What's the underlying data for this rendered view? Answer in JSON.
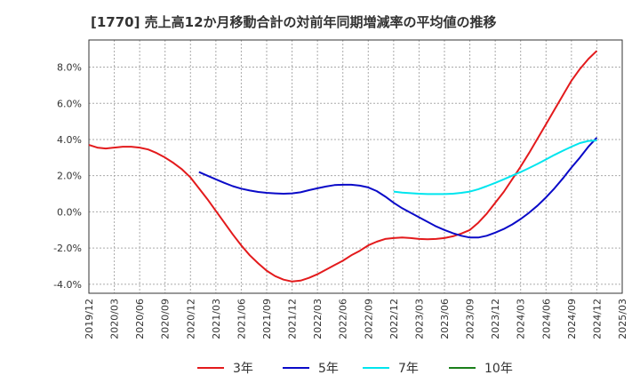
{
  "chart_data": {
    "type": "line",
    "title": "[1770]  売上高12か月移動合計の対前年同期増減率の平均値の推移",
    "xlabel": "",
    "ylabel": "",
    "ylim": [
      -4.5,
      9.5
    ],
    "yticks": [
      -4.0,
      -2.0,
      0.0,
      2.0,
      4.0,
      6.0,
      8.0
    ],
    "ytick_labels": [
      "-4.0%",
      "-2.0%",
      "0.0%",
      "2.0%",
      "4.0%",
      "6.0%",
      "8.0%"
    ],
    "xlim": [
      "2019-12",
      "2025-03"
    ],
    "xtick_labels": [
      "2019/12",
      "2020/03",
      "2020/06",
      "2020/09",
      "2020/12",
      "2021/03",
      "2021/06",
      "2021/09",
      "2021/12",
      "2022/03",
      "2022/06",
      "2022/09",
      "2022/12",
      "2023/03",
      "2023/06",
      "2023/09",
      "2023/12",
      "2024/03",
      "2024/06",
      "2024/09",
      "2024/12",
      "2025/03"
    ],
    "grid": true,
    "legend_position": "bottom",
    "series": [
      {
        "name": "3年",
        "color": "#e31a1c",
        "x": [
          "2019-12",
          "2020-01",
          "2020-02",
          "2020-03",
          "2020-04",
          "2020-05",
          "2020-06",
          "2020-07",
          "2020-08",
          "2020-09",
          "2020-10",
          "2020-11",
          "2020-12",
          "2021-01",
          "2021-02",
          "2021-03",
          "2021-04",
          "2021-05",
          "2021-06",
          "2021-07",
          "2021-08",
          "2021-09",
          "2021-10",
          "2021-11",
          "2021-12",
          "2022-01",
          "2022-02",
          "2022-03",
          "2022-04",
          "2022-05",
          "2022-06",
          "2022-07",
          "2022-08",
          "2022-09",
          "2022-10",
          "2022-11",
          "2022-12",
          "2023-01",
          "2023-02",
          "2023-03",
          "2023-04",
          "2023-05",
          "2023-06",
          "2023-07",
          "2023-08",
          "2023-09",
          "2023-10",
          "2023-11",
          "2023-12",
          "2024-01",
          "2024-02",
          "2024-03",
          "2024-04",
          "2024-05",
          "2024-06",
          "2024-07",
          "2024-08",
          "2024-09",
          "2024-10",
          "2024-11",
          "2024-12"
        ],
        "values": [
          3.7,
          3.55,
          3.5,
          3.55,
          3.6,
          3.6,
          3.55,
          3.45,
          3.25,
          3.0,
          2.7,
          2.35,
          1.9,
          1.3,
          0.7,
          0.05,
          -0.6,
          -1.25,
          -1.85,
          -2.4,
          -2.85,
          -3.25,
          -3.55,
          -3.75,
          -3.85,
          -3.8,
          -3.65,
          -3.45,
          -3.2,
          -2.95,
          -2.7,
          -2.4,
          -2.15,
          -1.85,
          -1.65,
          -1.5,
          -1.45,
          -1.42,
          -1.45,
          -1.5,
          -1.52,
          -1.5,
          -1.45,
          -1.35,
          -1.2,
          -1.0,
          -0.6,
          -0.1,
          0.5,
          1.1,
          1.8,
          2.5,
          3.25,
          4.05,
          4.85,
          5.65,
          6.45,
          7.25,
          7.9,
          8.45,
          8.9
        ]
      },
      {
        "name": "5年",
        "color": "#0a0ac8",
        "x": [
          "2021-01",
          "2021-02",
          "2021-03",
          "2021-04",
          "2021-05",
          "2021-06",
          "2021-07",
          "2021-08",
          "2021-09",
          "2021-10",
          "2021-11",
          "2021-12",
          "2022-01",
          "2022-02",
          "2022-03",
          "2022-04",
          "2022-05",
          "2022-06",
          "2022-07",
          "2022-08",
          "2022-09",
          "2022-10",
          "2022-11",
          "2022-12",
          "2023-01",
          "2023-02",
          "2023-03",
          "2023-04",
          "2023-05",
          "2023-06",
          "2023-07",
          "2023-08",
          "2023-09",
          "2023-10",
          "2023-11",
          "2023-12",
          "2024-01",
          "2024-02",
          "2024-03",
          "2024-04",
          "2024-05",
          "2024-06",
          "2024-07",
          "2024-08",
          "2024-09",
          "2024-10",
          "2024-11",
          "2024-12"
        ],
        "values": [
          2.2,
          2.0,
          1.8,
          1.6,
          1.42,
          1.28,
          1.18,
          1.1,
          1.05,
          1.02,
          1.0,
          1.02,
          1.08,
          1.2,
          1.3,
          1.4,
          1.48,
          1.5,
          1.5,
          1.45,
          1.35,
          1.15,
          0.85,
          0.5,
          0.2,
          -0.05,
          -0.3,
          -0.55,
          -0.8,
          -1.0,
          -1.18,
          -1.32,
          -1.42,
          -1.42,
          -1.32,
          -1.15,
          -0.95,
          -0.7,
          -0.4,
          -0.05,
          0.35,
          0.8,
          1.3,
          1.85,
          2.45,
          3.0,
          3.6,
          4.1
        ]
      },
      {
        "name": "7年",
        "color": "#00e5ee",
        "x": [
          "2022-12",
          "2023-01",
          "2023-02",
          "2023-03",
          "2023-04",
          "2023-05",
          "2023-06",
          "2023-07",
          "2023-08",
          "2023-09",
          "2023-10",
          "2023-11",
          "2023-12",
          "2024-01",
          "2024-02",
          "2024-03",
          "2024-04",
          "2024-05",
          "2024-06",
          "2024-07",
          "2024-08",
          "2024-09",
          "2024-10",
          "2024-11",
          "2024-12"
        ],
        "values": [
          1.12,
          1.06,
          1.03,
          1.0,
          0.98,
          0.98,
          0.98,
          1.0,
          1.05,
          1.12,
          1.25,
          1.42,
          1.6,
          1.8,
          2.0,
          2.2,
          2.42,
          2.65,
          2.9,
          3.15,
          3.38,
          3.6,
          3.8,
          3.92,
          3.95
        ]
      },
      {
        "name": "10年",
        "color": "#1a7f1a",
        "x": [],
        "values": []
      }
    ]
  }
}
